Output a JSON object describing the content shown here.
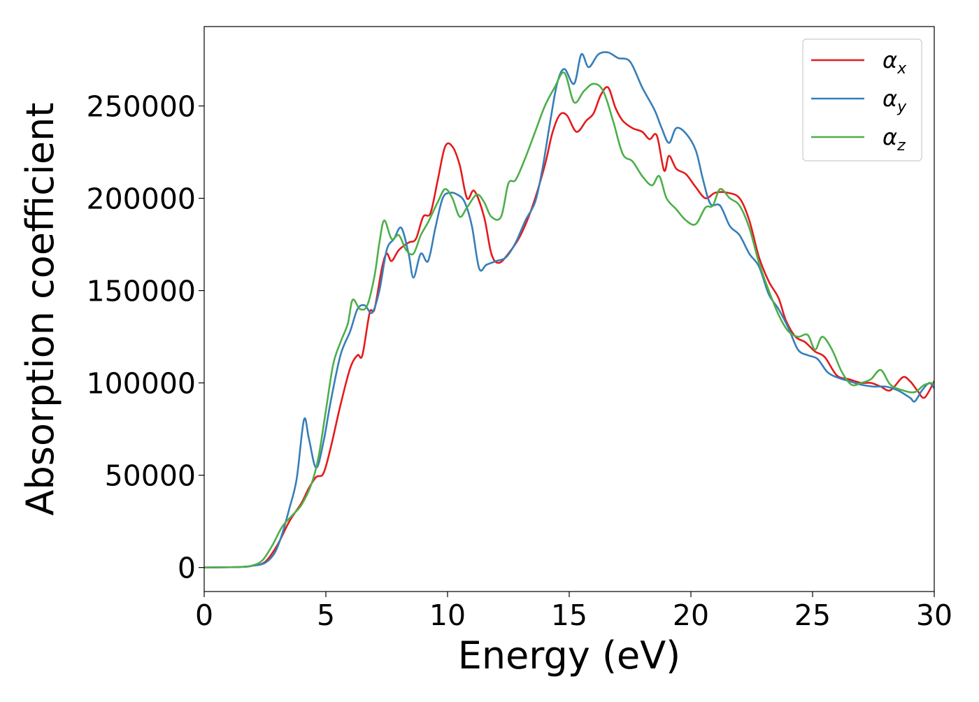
{
  "chart_data": {
    "type": "line",
    "title": "",
    "xlabel": "Energy (eV)",
    "ylabel": "Absorption coefficient",
    "xlim": [
      0,
      30
    ],
    "ylim": [
      -13000,
      293000
    ],
    "x_ticks": [
      0,
      5,
      10,
      15,
      20,
      25,
      30
    ],
    "x_tick_labels": [
      "0",
      "5",
      "10",
      "15",
      "20",
      "25",
      "30"
    ],
    "y_ticks": [
      0,
      50000,
      100000,
      150000,
      200000,
      250000
    ],
    "y_tick_labels": [
      "0",
      "50000",
      "100000",
      "150000",
      "200000",
      "250000"
    ],
    "grid": false,
    "legend_position": "top-right",
    "legend": [
      {
        "symbol": "α",
        "sub": "x",
        "color": "#e41a1c"
      },
      {
        "symbol": "α",
        "sub": "y",
        "color": "#377eb8"
      },
      {
        "symbol": "α",
        "sub": "z",
        "color": "#4daf4a"
      }
    ],
    "series": [
      {
        "name": "αx",
        "color": "#e41a1c",
        "points": [
          [
            0,
            0
          ],
          [
            1.5,
            300
          ],
          [
            2.0,
            1000
          ],
          [
            2.5,
            3000
          ],
          [
            3.0,
            12000
          ],
          [
            3.5,
            25000
          ],
          [
            4.0,
            35000
          ],
          [
            4.3,
            43000
          ],
          [
            4.6,
            49000
          ],
          [
            4.9,
            51000
          ],
          [
            5.2,
            65000
          ],
          [
            5.6,
            88000
          ],
          [
            6.0,
            108000
          ],
          [
            6.3,
            115000
          ],
          [
            6.5,
            115000
          ],
          [
            6.8,
            138000
          ],
          [
            7.0,
            140000
          ],
          [
            7.3,
            162000
          ],
          [
            7.5,
            170000
          ],
          [
            7.7,
            166000
          ],
          [
            8.0,
            172000
          ],
          [
            8.4,
            176000
          ],
          [
            8.7,
            178000
          ],
          [
            9.0,
            190000
          ],
          [
            9.3,
            192000
          ],
          [
            9.6,
            210000
          ],
          [
            9.9,
            228000
          ],
          [
            10.2,
            228000
          ],
          [
            10.5,
            218000
          ],
          [
            10.8,
            200000
          ],
          [
            11.1,
            204000
          ],
          [
            11.5,
            190000
          ],
          [
            11.8,
            170000
          ],
          [
            12.1,
            165000
          ],
          [
            12.5,
            170000
          ],
          [
            13.0,
            180000
          ],
          [
            13.5,
            196000
          ],
          [
            14.0,
            218000
          ],
          [
            14.3,
            235000
          ],
          [
            14.6,
            245000
          ],
          [
            14.9,
            245000
          ],
          [
            15.3,
            236000
          ],
          [
            15.7,
            242000
          ],
          [
            16.0,
            246000
          ],
          [
            16.3,
            256000
          ],
          [
            16.6,
            260000
          ],
          [
            16.9,
            249000
          ],
          [
            17.2,
            242000
          ],
          [
            17.6,
            238000
          ],
          [
            18.0,
            236000
          ],
          [
            18.3,
            232000
          ],
          [
            18.6,
            234000
          ],
          [
            18.9,
            215000
          ],
          [
            19.1,
            223000
          ],
          [
            19.4,
            216000
          ],
          [
            19.8,
            213000
          ],
          [
            20.2,
            206000
          ],
          [
            20.6,
            200000
          ],
          [
            21.0,
            203000
          ],
          [
            21.5,
            203000
          ],
          [
            22.0,
            200000
          ],
          [
            22.4,
            188000
          ],
          [
            22.8,
            168000
          ],
          [
            23.2,
            155000
          ],
          [
            23.6,
            146000
          ],
          [
            23.9,
            134000
          ],
          [
            24.3,
            125000
          ],
          [
            24.7,
            122000
          ],
          [
            25.1,
            117000
          ],
          [
            25.5,
            114000
          ],
          [
            26.0,
            104000
          ],
          [
            26.5,
            102000
          ],
          [
            27.0,
            100000
          ],
          [
            27.4,
            100000
          ],
          [
            27.8,
            98000
          ],
          [
            28.2,
            96000
          ],
          [
            28.7,
            103000
          ],
          [
            29.0,
            101000
          ],
          [
            29.3,
            96000
          ],
          [
            29.6,
            92000
          ],
          [
            30.0,
            101000
          ]
        ]
      },
      {
        "name": "αy",
        "color": "#377eb8",
        "points": [
          [
            0,
            0
          ],
          [
            1.5,
            300
          ],
          [
            2.0,
            1000
          ],
          [
            2.5,
            2500
          ],
          [
            2.9,
            8000
          ],
          [
            3.2,
            18000
          ],
          [
            3.5,
            32000
          ],
          [
            3.8,
            48000
          ],
          [
            4.1,
            80000
          ],
          [
            4.3,
            70000
          ],
          [
            4.6,
            54000
          ],
          [
            4.9,
            68000
          ],
          [
            5.2,
            90000
          ],
          [
            5.6,
            115000
          ],
          [
            6.0,
            128000
          ],
          [
            6.3,
            140000
          ],
          [
            6.6,
            142000
          ],
          [
            6.9,
            138000
          ],
          [
            7.2,
            150000
          ],
          [
            7.5,
            172000
          ],
          [
            7.8,
            178000
          ],
          [
            8.1,
            184000
          ],
          [
            8.4,
            170000
          ],
          [
            8.6,
            157000
          ],
          [
            8.9,
            170000
          ],
          [
            9.2,
            166000
          ],
          [
            9.5,
            184000
          ],
          [
            9.8,
            200000
          ],
          [
            10.1,
            203000
          ],
          [
            10.4,
            202000
          ],
          [
            10.7,
            198000
          ],
          [
            11.0,
            185000
          ],
          [
            11.3,
            162000
          ],
          [
            11.6,
            164000
          ],
          [
            12.0,
            166000
          ],
          [
            12.4,
            168000
          ],
          [
            12.8,
            176000
          ],
          [
            13.2,
            188000
          ],
          [
            13.6,
            198000
          ],
          [
            13.9,
            216000
          ],
          [
            14.2,
            240000
          ],
          [
            14.5,
            262000
          ],
          [
            14.8,
            270000
          ],
          [
            15.2,
            262000
          ],
          [
            15.5,
            278000
          ],
          [
            15.8,
            271000
          ],
          [
            16.2,
            278000
          ],
          [
            16.6,
            279000
          ],
          [
            17.0,
            276000
          ],
          [
            17.5,
            274000
          ],
          [
            18.0,
            260000
          ],
          [
            18.5,
            248000
          ],
          [
            18.8,
            238000
          ],
          [
            19.1,
            230000
          ],
          [
            19.4,
            238000
          ],
          [
            19.8,
            235000
          ],
          [
            20.2,
            226000
          ],
          [
            20.5,
            210000
          ],
          [
            20.8,
            197000
          ],
          [
            21.2,
            196000
          ],
          [
            21.6,
            185000
          ],
          [
            22.0,
            180000
          ],
          [
            22.4,
            170000
          ],
          [
            22.8,
            163000
          ],
          [
            23.2,
            148000
          ],
          [
            23.6,
            140000
          ],
          [
            24.0,
            130000
          ],
          [
            24.4,
            118000
          ],
          [
            24.8,
            115000
          ],
          [
            25.2,
            113000
          ],
          [
            25.6,
            106000
          ],
          [
            26.0,
            103000
          ],
          [
            26.5,
            101000
          ],
          [
            27.0,
            99000
          ],
          [
            27.5,
            98000
          ],
          [
            28.0,
            98000
          ],
          [
            28.5,
            96000
          ],
          [
            29.0,
            92000
          ],
          [
            29.2,
            90000
          ],
          [
            29.5,
            96000
          ],
          [
            29.8,
            100000
          ],
          [
            30.0,
            97000
          ]
        ]
      },
      {
        "name": "αz",
        "color": "#4daf4a",
        "points": [
          [
            0,
            0
          ],
          [
            1.5,
            300
          ],
          [
            2.0,
            1200
          ],
          [
            2.4,
            4000
          ],
          [
            2.8,
            12000
          ],
          [
            3.2,
            22000
          ],
          [
            3.6,
            28000
          ],
          [
            4.0,
            34000
          ],
          [
            4.4,
            45000
          ],
          [
            4.7,
            60000
          ],
          [
            5.0,
            85000
          ],
          [
            5.3,
            110000
          ],
          [
            5.6,
            122000
          ],
          [
            5.9,
            132000
          ],
          [
            6.1,
            145000
          ],
          [
            6.4,
            140000
          ],
          [
            6.7,
            142000
          ],
          [
            7.0,
            158000
          ],
          [
            7.2,
            176000
          ],
          [
            7.4,
            188000
          ],
          [
            7.7,
            178000
          ],
          [
            8.0,
            180000
          ],
          [
            8.3,
            172000
          ],
          [
            8.6,
            170000
          ],
          [
            8.9,
            180000
          ],
          [
            9.2,
            187000
          ],
          [
            9.6,
            198000
          ],
          [
            9.9,
            205000
          ],
          [
            10.2,
            200000
          ],
          [
            10.5,
            190000
          ],
          [
            10.8,
            195000
          ],
          [
            11.2,
            202000
          ],
          [
            11.5,
            198000
          ],
          [
            11.8,
            190000
          ],
          [
            12.2,
            190000
          ],
          [
            12.5,
            208000
          ],
          [
            12.8,
            210000
          ],
          [
            13.2,
            222000
          ],
          [
            13.6,
            236000
          ],
          [
            14.0,
            250000
          ],
          [
            14.4,
            260000
          ],
          [
            14.8,
            268000
          ],
          [
            15.2,
            252000
          ],
          [
            15.6,
            258000
          ],
          [
            16.0,
            262000
          ],
          [
            16.4,
            258000
          ],
          [
            16.8,
            242000
          ],
          [
            17.2,
            224000
          ],
          [
            17.6,
            220000
          ],
          [
            18.0,
            212000
          ],
          [
            18.4,
            207000
          ],
          [
            18.7,
            212000
          ],
          [
            19.0,
            200000
          ],
          [
            19.4,
            194000
          ],
          [
            19.8,
            188000
          ],
          [
            20.2,
            186000
          ],
          [
            20.6,
            195000
          ],
          [
            20.9,
            196000
          ],
          [
            21.2,
            205000
          ],
          [
            21.6,
            200000
          ],
          [
            22.0,
            196000
          ],
          [
            22.4,
            184000
          ],
          [
            22.8,
            165000
          ],
          [
            23.2,
            150000
          ],
          [
            23.6,
            137000
          ],
          [
            24.0,
            128000
          ],
          [
            24.4,
            125000
          ],
          [
            24.8,
            126000
          ],
          [
            25.1,
            118000
          ],
          [
            25.4,
            125000
          ],
          [
            25.8,
            118000
          ],
          [
            26.2,
            106000
          ],
          [
            26.6,
            99000
          ],
          [
            27.0,
            100000
          ],
          [
            27.4,
            102000
          ],
          [
            27.8,
            107000
          ],
          [
            28.2,
            99000
          ],
          [
            28.7,
            96000
          ],
          [
            29.2,
            95000
          ],
          [
            29.6,
            99000
          ],
          [
            30.0,
            100000
          ]
        ]
      }
    ]
  }
}
